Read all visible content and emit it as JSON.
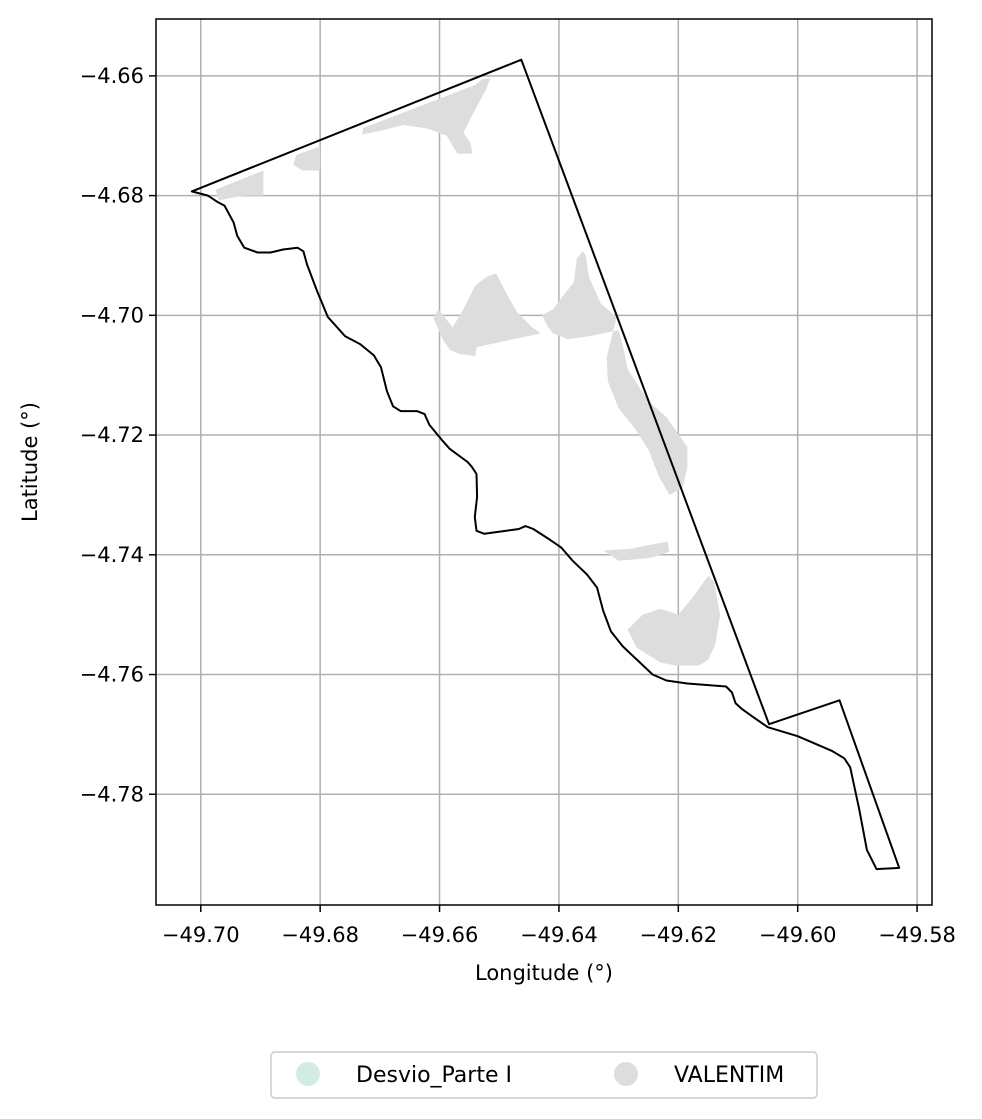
{
  "map": {
    "xlabel": "Longitude (°)",
    "ylabel": "Latitude (°)",
    "xlim": [
      -49.7075,
      -49.5775
    ],
    "ylim": [
      -4.7985,
      -4.6505
    ],
    "grid": true,
    "x_ticks": [
      {
        "value": -49.7,
        "label": "−49.70"
      },
      {
        "value": -49.68,
        "label": "−49.68"
      },
      {
        "value": -49.66,
        "label": "−49.66"
      },
      {
        "value": -49.64,
        "label": "−49.64"
      },
      {
        "value": -49.62,
        "label": "−49.62"
      },
      {
        "value": -49.6,
        "label": "−49.60"
      },
      {
        "value": -49.58,
        "label": "−49.58"
      }
    ],
    "y_ticks": [
      {
        "value": -4.66,
        "label": "−4.66"
      },
      {
        "value": -4.68,
        "label": "−4.68"
      },
      {
        "value": -4.7,
        "label": "−4.70"
      },
      {
        "value": -4.72,
        "label": "−4.72"
      },
      {
        "value": -4.74,
        "label": "−4.74"
      },
      {
        "value": -4.76,
        "label": "−4.76"
      },
      {
        "value": -4.78,
        "label": "−4.78"
      }
    ],
    "legend_position": "bottom-center",
    "legend": [
      {
        "label": "Desvio_Parte I",
        "color": "#d3ece1"
      },
      {
        "label": "VALENTIM",
        "color": "#dddddd"
      }
    ],
    "boundary_color": "#000000",
    "fill_color": "#dddddd"
  },
  "chart_data": {
    "type": "map",
    "xlabel": "Longitude (°)",
    "ylabel": "Latitude (°)",
    "xlim": [
      -49.7075,
      -49.5775
    ],
    "ylim": [
      -4.7985,
      -4.6505
    ],
    "boundary": [
      [
        -49.7015,
        -4.6793
      ],
      [
        -49.6463,
        -4.6573
      ],
      [
        -49.6048,
        -4.7683
      ],
      [
        -49.593,
        -4.7643
      ],
      [
        -49.583,
        -4.7923
      ],
      [
        -49.5868,
        -4.7925
      ],
      [
        -49.5884,
        -4.7893
      ],
      [
        -49.5897,
        -4.7825
      ],
      [
        -49.5912,
        -4.7755
      ],
      [
        -49.5922,
        -4.774
      ],
      [
        -49.5942,
        -4.7728
      ],
      [
        -49.6,
        -4.7703
      ],
      [
        -49.605,
        -4.7688
      ],
      [
        -49.6076,
        -4.767
      ],
      [
        -49.6093,
        -4.7658
      ],
      [
        -49.6104,
        -4.7648
      ],
      [
        -49.611,
        -4.763
      ],
      [
        -49.612,
        -4.762
      ],
      [
        -49.6185,
        -4.7615
      ],
      [
        -49.622,
        -4.761
      ],
      [
        -49.6243,
        -4.76
      ],
      [
        -49.6293,
        -4.7553
      ],
      [
        -49.6313,
        -4.7528
      ],
      [
        -49.6326,
        -4.7493
      ],
      [
        -49.6336,
        -4.7455
      ],
      [
        -49.6353,
        -4.7433
      ],
      [
        -49.6377,
        -4.741
      ],
      [
        -49.6396,
        -4.7388
      ],
      [
        -49.6418,
        -4.7373
      ],
      [
        -49.6443,
        -4.7357
      ],
      [
        -49.6456,
        -4.7352
      ],
      [
        -49.6467,
        -4.7357
      ],
      [
        -49.6525,
        -4.7365
      ],
      [
        -49.6538,
        -4.736
      ],
      [
        -49.6541,
        -4.7337
      ],
      [
        -49.6537,
        -4.7303
      ],
      [
        -49.6538,
        -4.7265
      ],
      [
        -49.6546,
        -4.7253
      ],
      [
        -49.6553,
        -4.7245
      ],
      [
        -49.6583,
        -4.7223
      ],
      [
        -49.6597,
        -4.7207
      ],
      [
        -49.6617,
        -4.7183
      ],
      [
        -49.6625,
        -4.7165
      ],
      [
        -49.6638,
        -4.716
      ],
      [
        -49.6665,
        -4.716
      ],
      [
        -49.6678,
        -4.7152
      ],
      [
        -49.6688,
        -4.7127
      ],
      [
        -49.6698,
        -4.7087
      ],
      [
        -49.671,
        -4.7067
      ],
      [
        -49.6733,
        -4.7048
      ],
      [
        -49.6758,
        -4.7035
      ],
      [
        -49.6787,
        -4.7003
      ],
      [
        -49.6805,
        -4.696
      ],
      [
        -49.6822,
        -4.6915
      ],
      [
        -49.6828,
        -4.6893
      ],
      [
        -49.6838,
        -4.6887
      ],
      [
        -49.6862,
        -4.689
      ],
      [
        -49.6883,
        -4.6895
      ],
      [
        -49.6905,
        -4.6895
      ],
      [
        -49.6927,
        -4.6887
      ],
      [
        -49.6939,
        -4.6867
      ],
      [
        -49.6945,
        -4.6845
      ],
      [
        -49.696,
        -4.6817
      ],
      [
        -49.6973,
        -4.681
      ],
      [
        -49.6988,
        -4.68
      ],
      [
        -49.7015,
        -4.6793
      ]
    ],
    "areas": [
      {
        "name": "VALENTIM",
        "polygon": [
          [
            -49.6975,
            -4.679
          ],
          [
            -49.6895,
            -4.6758
          ],
          [
            -49.6895,
            -4.68
          ],
          [
            -49.693,
            -4.68
          ],
          [
            -49.697,
            -4.6808
          ]
        ]
      },
      {
        "name": "VALENTIM",
        "polygon": [
          [
            -49.684,
            -4.6732
          ],
          [
            -49.68,
            -4.6718
          ],
          [
            -49.68,
            -4.6758
          ],
          [
            -49.683,
            -4.6758
          ],
          [
            -49.6845,
            -4.6748
          ]
        ]
      },
      {
        "name": "VALENTIM",
        "polygon": [
          [
            -49.6728,
            -4.6687
          ],
          [
            -49.654,
            -4.6615
          ],
          [
            -49.6528,
            -4.6605
          ],
          [
            -49.6515,
            -4.6605
          ],
          [
            -49.6523,
            -4.6625
          ],
          [
            -49.6545,
            -4.6665
          ],
          [
            -49.656,
            -4.6695
          ],
          [
            -49.6548,
            -4.6712
          ],
          [
            -49.6545,
            -4.673
          ],
          [
            -49.657,
            -4.673
          ],
          [
            -49.6588,
            -4.67
          ],
          [
            -49.662,
            -4.6688
          ],
          [
            -49.666,
            -4.6682
          ],
          [
            -49.67,
            -4.6692
          ],
          [
            -49.673,
            -4.6698
          ]
        ]
      },
      {
        "name": "VALENTIM",
        "polygon": [
          [
            -49.6602,
            -4.699
          ],
          [
            -49.6578,
            -4.702
          ],
          [
            -49.656,
            -4.699
          ],
          [
            -49.654,
            -4.695
          ],
          [
            -49.652,
            -4.6935
          ],
          [
            -49.6505,
            -4.693
          ],
          [
            -49.6487,
            -4.6965
          ],
          [
            -49.647,
            -4.6995
          ],
          [
            -49.6445,
            -4.702
          ],
          [
            -49.643,
            -4.703
          ],
          [
            -49.6538,
            -4.7053
          ],
          [
            -49.654,
            -4.7068
          ],
          [
            -49.6565,
            -4.7065
          ],
          [
            -49.6582,
            -4.7058
          ],
          [
            -49.6595,
            -4.704
          ],
          [
            -49.661,
            -4.7005
          ]
        ]
      },
      {
        "name": "VALENTIM",
        "polygon": [
          [
            -49.642,
            -4.7017
          ],
          [
            -49.6428,
            -4.7
          ],
          [
            -49.641,
            -4.699
          ],
          [
            -49.6395,
            -4.697
          ],
          [
            -49.6375,
            -4.6945
          ],
          [
            -49.637,
            -4.6905
          ],
          [
            -49.636,
            -4.6893
          ],
          [
            -49.6355,
            -4.69
          ],
          [
            -49.635,
            -4.6935
          ],
          [
            -49.633,
            -4.698
          ],
          [
            -49.6303,
            -4.7003
          ],
          [
            -49.631,
            -4.703
          ],
          [
            -49.632,
            -4.707
          ],
          [
            -49.6318,
            -4.711
          ],
          [
            -49.63,
            -4.7155
          ],
          [
            -49.6272,
            -4.719
          ],
          [
            -49.625,
            -4.7225
          ],
          [
            -49.6232,
            -4.727
          ],
          [
            -49.6215,
            -4.73
          ],
          [
            -49.6193,
            -4.7288
          ],
          [
            -49.6185,
            -4.7255
          ],
          [
            -49.6185,
            -4.722
          ],
          [
            -49.6202,
            -4.7195
          ],
          [
            -49.622,
            -4.717
          ],
          [
            -49.6245,
            -4.7148
          ],
          [
            -49.6262,
            -4.7125
          ],
          [
            -49.6285,
            -4.709
          ],
          [
            -49.6292,
            -4.7055
          ],
          [
            -49.63,
            -4.7025
          ],
          [
            -49.635,
            -4.7035
          ],
          [
            -49.6385,
            -4.704
          ],
          [
            -49.641,
            -4.703
          ]
        ]
      },
      {
        "name": "VALENTIM",
        "polygon": [
          [
            -49.6325,
            -4.7393
          ],
          [
            -49.628,
            -4.739
          ],
          [
            -49.624,
            -4.7382
          ],
          [
            -49.6218,
            -4.7378
          ],
          [
            -49.6215,
            -4.7395
          ],
          [
            -49.6245,
            -4.7405
          ],
          [
            -49.63,
            -4.741
          ]
        ]
      },
      {
        "name": "VALENTIM",
        "polygon": [
          [
            -49.623,
            -4.758
          ],
          [
            -49.627,
            -4.7555
          ],
          [
            -49.6285,
            -4.7525
          ],
          [
            -49.626,
            -4.75
          ],
          [
            -49.623,
            -4.749
          ],
          [
            -49.62,
            -4.75
          ],
          [
            -49.6175,
            -4.747
          ],
          [
            -49.615,
            -4.7435
          ],
          [
            -49.614,
            -4.7445
          ],
          [
            -49.613,
            -4.75
          ],
          [
            -49.6138,
            -4.755
          ],
          [
            -49.615,
            -4.7575
          ],
          [
            -49.6165,
            -4.7585
          ],
          [
            -49.6205,
            -4.7585
          ]
        ]
      }
    ]
  }
}
